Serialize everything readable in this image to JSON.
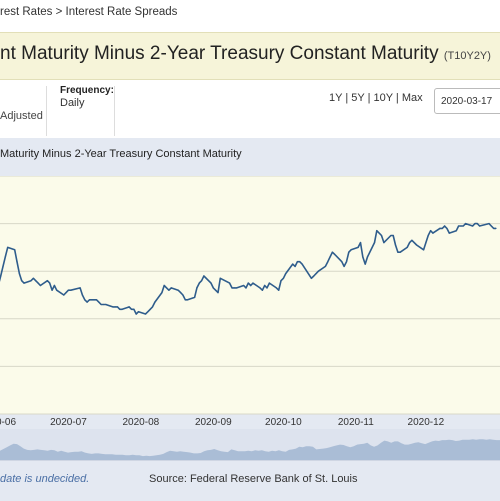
{
  "breadcrumb": "rest Rates > Interest Rate Spreads",
  "series": {
    "title": "nt Maturity Minus 2-Year Treasury Constant Maturity",
    "code": "(T10Y2Y)"
  },
  "info": {
    "adjustment": "Adjusted",
    "frequency_label": "Frequency:",
    "frequency_value": "Daily"
  },
  "range_links": [
    "1Y",
    "5Y",
    "10Y",
    "Max"
  ],
  "date_input_value": "2020-03-17",
  "chart_title": "Maturity Minus 2-Year Treasury Constant Maturity",
  "footer": {
    "note": "date is undecided.",
    "source": "Source: Federal Reserve Bank of St. Louis"
  },
  "colors": {
    "line": "#2f5d8c",
    "plot_bg": "#fbfbea",
    "panel_bg": "#e4e9f2",
    "navigator": "#9eb3cf"
  },
  "chart_data": {
    "type": "line",
    "title": "Maturity Minus 2-Year Treasury Constant Maturity",
    "x_tick_labels": [
      "0-06",
      "2020-07",
      "2020-08",
      "2020-09",
      "2020-10",
      "2020-11",
      "2020-12"
    ],
    "x_range": [
      "2020-05-31",
      "2020-12-31"
    ],
    "y_range": [
      0.0,
      1.0
    ],
    "grid": "horizontal",
    "legend": "none",
    "series": [
      {
        "values": [
          [
            "2020-06-01",
            0.54
          ],
          [
            "2020-06-02",
            0.58
          ],
          [
            "2020-06-03",
            0.62
          ],
          [
            "2020-06-04",
            0.66
          ],
          [
            "2020-06-05",
            0.7
          ],
          [
            "2020-06-08",
            0.69
          ],
          [
            "2020-06-09",
            0.64
          ],
          [
            "2020-06-10",
            0.59
          ],
          [
            "2020-06-11",
            0.56
          ],
          [
            "2020-06-12",
            0.55
          ],
          [
            "2020-06-15",
            0.56
          ],
          [
            "2020-06-16",
            0.57
          ],
          [
            "2020-06-17",
            0.56
          ],
          [
            "2020-06-18",
            0.55
          ],
          [
            "2020-06-19",
            0.54
          ],
          [
            "2020-06-22",
            0.56
          ],
          [
            "2020-06-23",
            0.55
          ],
          [
            "2020-06-24",
            0.52
          ],
          [
            "2020-06-25",
            0.54
          ],
          [
            "2020-06-26",
            0.52
          ],
          [
            "2020-06-29",
            0.5
          ],
          [
            "2020-06-30",
            0.51
          ],
          [
            "2020-07-01",
            0.52
          ],
          [
            "2020-07-02",
            0.52
          ],
          [
            "2020-07-06",
            0.53
          ],
          [
            "2020-07-07",
            0.5
          ],
          [
            "2020-07-08",
            0.48
          ],
          [
            "2020-07-09",
            0.47
          ],
          [
            "2020-07-10",
            0.48
          ],
          [
            "2020-07-13",
            0.48
          ],
          [
            "2020-07-14",
            0.47
          ],
          [
            "2020-07-15",
            0.46
          ],
          [
            "2020-07-16",
            0.46
          ],
          [
            "2020-07-17",
            0.46
          ],
          [
            "2020-07-20",
            0.45
          ],
          [
            "2020-07-21",
            0.45
          ],
          [
            "2020-07-22",
            0.45
          ],
          [
            "2020-07-23",
            0.44
          ],
          [
            "2020-07-24",
            0.44
          ],
          [
            "2020-07-27",
            0.45
          ],
          [
            "2020-07-28",
            0.44
          ],
          [
            "2020-07-29",
            0.44
          ],
          [
            "2020-07-30",
            0.42
          ],
          [
            "2020-07-31",
            0.43
          ],
          [
            "2020-08-03",
            0.42
          ],
          [
            "2020-08-04",
            0.43
          ],
          [
            "2020-08-05",
            0.44
          ],
          [
            "2020-08-06",
            0.45
          ],
          [
            "2020-08-07",
            0.47
          ],
          [
            "2020-08-10",
            0.51
          ],
          [
            "2020-08-11",
            0.54
          ],
          [
            "2020-08-12",
            0.53
          ],
          [
            "2020-08-13",
            0.52
          ],
          [
            "2020-08-14",
            0.53
          ],
          [
            "2020-08-17",
            0.52
          ],
          [
            "2020-08-18",
            0.51
          ],
          [
            "2020-08-19",
            0.5
          ],
          [
            "2020-08-20",
            0.48
          ],
          [
            "2020-08-21",
            0.48
          ],
          [
            "2020-08-24",
            0.49
          ],
          [
            "2020-08-25",
            0.53
          ],
          [
            "2020-08-26",
            0.55
          ],
          [
            "2020-08-27",
            0.56
          ],
          [
            "2020-08-28",
            0.58
          ],
          [
            "2020-08-31",
            0.55
          ],
          [
            "2020-09-01",
            0.53
          ],
          [
            "2020-09-02",
            0.52
          ],
          [
            "2020-09-03",
            0.51
          ],
          [
            "2020-09-04",
            0.57
          ],
          [
            "2020-09-08",
            0.55
          ],
          [
            "2020-09-09",
            0.53
          ],
          [
            "2020-09-10",
            0.53
          ],
          [
            "2020-09-11",
            0.53
          ],
          [
            "2020-09-14",
            0.54
          ],
          [
            "2020-09-15",
            0.53
          ],
          [
            "2020-09-16",
            0.55
          ],
          [
            "2020-09-17",
            0.54
          ],
          [
            "2020-09-18",
            0.55
          ],
          [
            "2020-09-21",
            0.53
          ],
          [
            "2020-09-22",
            0.52
          ],
          [
            "2020-09-23",
            0.54
          ],
          [
            "2020-09-24",
            0.53
          ],
          [
            "2020-09-25",
            0.55
          ],
          [
            "2020-09-28",
            0.53
          ],
          [
            "2020-09-29",
            0.52
          ],
          [
            "2020-09-30",
            0.56
          ],
          [
            "2020-10-01",
            0.57
          ],
          [
            "2020-10-02",
            0.59
          ],
          [
            "2020-10-05",
            0.63
          ],
          [
            "2020-10-06",
            0.62
          ],
          [
            "2020-10-07",
            0.64
          ],
          [
            "2020-10-08",
            0.64
          ],
          [
            "2020-10-09",
            0.63
          ],
          [
            "2020-10-13",
            0.57
          ],
          [
            "2020-10-14",
            0.58
          ],
          [
            "2020-10-15",
            0.59
          ],
          [
            "2020-10-16",
            0.6
          ],
          [
            "2020-10-19",
            0.62
          ],
          [
            "2020-10-20",
            0.64
          ],
          [
            "2020-10-21",
            0.66
          ],
          [
            "2020-10-22",
            0.68
          ],
          [
            "2020-10-23",
            0.67
          ],
          [
            "2020-10-26",
            0.64
          ],
          [
            "2020-10-27",
            0.62
          ],
          [
            "2020-10-28",
            0.64
          ],
          [
            "2020-10-29",
            0.68
          ],
          [
            "2020-10-30",
            0.69
          ],
          [
            "2020-11-02",
            0.7
          ],
          [
            "2020-11-03",
            0.72
          ],
          [
            "2020-11-04",
            0.66
          ],
          [
            "2020-11-05",
            0.63
          ],
          [
            "2020-11-06",
            0.66
          ],
          [
            "2020-11-09",
            0.72
          ],
          [
            "2020-11-10",
            0.77
          ],
          [
            "2020-11-12",
            0.75
          ],
          [
            "2020-11-13",
            0.72
          ],
          [
            "2020-11-16",
            0.75
          ],
          [
            "2020-11-17",
            0.75
          ],
          [
            "2020-11-18",
            0.71
          ],
          [
            "2020-11-19",
            0.68
          ],
          [
            "2020-11-20",
            0.68
          ],
          [
            "2020-11-23",
            0.7
          ],
          [
            "2020-11-24",
            0.72
          ],
          [
            "2020-11-25",
            0.73
          ],
          [
            "2020-11-27",
            0.71
          ],
          [
            "2020-11-30",
            0.69
          ],
          [
            "2020-12-01",
            0.72
          ],
          [
            "2020-12-02",
            0.75
          ],
          [
            "2020-12-03",
            0.77
          ],
          [
            "2020-12-04",
            0.76
          ],
          [
            "2020-12-07",
            0.78
          ],
          [
            "2020-12-08",
            0.78
          ],
          [
            "2020-12-09",
            0.79
          ],
          [
            "2020-12-10",
            0.78
          ],
          [
            "2020-12-11",
            0.76
          ],
          [
            "2020-12-14",
            0.77
          ],
          [
            "2020-12-15",
            0.79
          ],
          [
            "2020-12-16",
            0.79
          ],
          [
            "2020-12-17",
            0.79
          ],
          [
            "2020-12-18",
            0.8
          ],
          [
            "2020-12-21",
            0.79
          ],
          [
            "2020-12-22",
            0.8
          ],
          [
            "2020-12-23",
            0.8
          ],
          [
            "2020-12-24",
            0.79
          ],
          [
            "2020-12-28",
            0.8
          ],
          [
            "2020-12-29",
            0.79
          ],
          [
            "2020-12-30",
            0.78
          ],
          [
            "2020-12-31",
            0.78
          ]
        ]
      }
    ]
  }
}
